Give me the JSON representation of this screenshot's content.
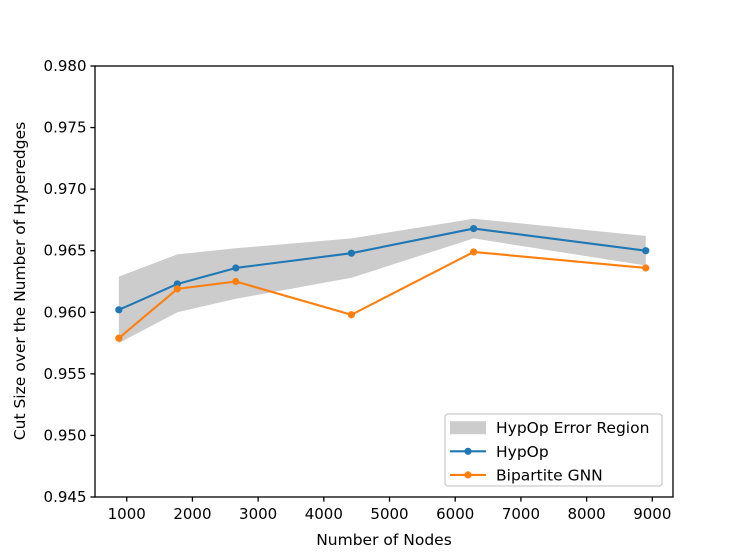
{
  "chart_data": {
    "type": "line",
    "title": "",
    "xlabel": "Number of Nodes",
    "ylabel": "Cut Size over the Number of Hyperedges",
    "xlim": [
      517,
      9315
    ],
    "ylim": [
      0.945,
      0.98
    ],
    "grid": false,
    "background": "#ffffff",
    "xticks": [
      {
        "value": 1000,
        "label": "1000"
      },
      {
        "value": 2000,
        "label": "2000"
      },
      {
        "value": 3000,
        "label": "3000"
      },
      {
        "value": 4000,
        "label": "4000"
      },
      {
        "value": 5000,
        "label": "5000"
      },
      {
        "value": 6000,
        "label": "6000"
      },
      {
        "value": 7000,
        "label": "7000"
      },
      {
        "value": 8000,
        "label": "8000"
      },
      {
        "value": 9000,
        "label": "9000"
      }
    ],
    "yticks": [
      {
        "value": 0.945,
        "label": "0.945"
      },
      {
        "value": 0.95,
        "label": "0.950"
      },
      {
        "value": 0.955,
        "label": "0.955"
      },
      {
        "value": 0.96,
        "label": "0.960"
      },
      {
        "value": 0.965,
        "label": "0.965"
      },
      {
        "value": 0.97,
        "label": "0.970"
      },
      {
        "value": 0.975,
        "label": "0.975"
      },
      {
        "value": 0.98,
        "label": "0.980"
      }
    ],
    "x": [
      880,
      1770,
      2660,
      4420,
      6280,
      8900
    ],
    "series": [
      {
        "name": "HypOp",
        "color": "#1f77b4",
        "marker": "circle",
        "values": [
          0.9602,
          0.9623,
          0.9636,
          0.9648,
          0.9668,
          0.965
        ]
      },
      {
        "name": "Bipartite GNN",
        "color": "#ff7f0e",
        "marker": "circle",
        "values": [
          0.9579,
          0.9619,
          0.9625,
          0.9598,
          0.9649,
          0.9636
        ]
      }
    ],
    "error_band": {
      "name": "HypOp Error Region",
      "for_series": "HypOp",
      "color": "#cccccc",
      "upper": [
        0.9629,
        0.9647,
        0.9652,
        0.966,
        0.9676,
        0.9662
      ],
      "lower": [
        0.9575,
        0.96,
        0.9611,
        0.9628,
        0.966,
        0.9638
      ]
    },
    "legend": {
      "position": "lower right",
      "items": [
        {
          "type": "patch",
          "color": "#cccccc",
          "label": "HypOp Error Region"
        },
        {
          "type": "line",
          "color": "#1f77b4",
          "label": "HypOp"
        },
        {
          "type": "line",
          "color": "#ff7f0e",
          "label": "Bipartite GNN"
        }
      ]
    }
  }
}
